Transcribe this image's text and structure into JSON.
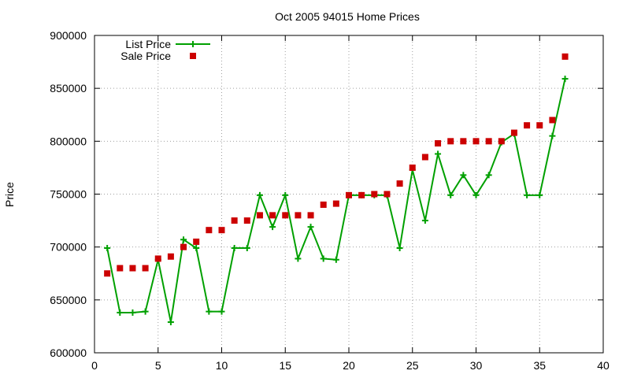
{
  "chart_data": {
    "type": "line",
    "title": "Oct 2005 94015 Home Prices",
    "xlabel": "",
    "ylabel": "Price",
    "xlim": [
      0,
      40
    ],
    "ylim": [
      600000,
      900000
    ],
    "xticks": [
      "0",
      "5",
      "10",
      "15",
      "20",
      "25",
      "30",
      "35",
      "40"
    ],
    "yticks": [
      "600000",
      "650000",
      "700000",
      "750000",
      "800000",
      "850000",
      "900000"
    ],
    "grid": true,
    "legend_position": "top-left",
    "x": [
      1,
      2,
      3,
      4,
      5,
      6,
      7,
      8,
      9,
      10,
      11,
      12,
      13,
      14,
      15,
      16,
      17,
      18,
      19,
      20,
      21,
      22,
      23,
      24,
      25,
      26,
      27,
      28,
      29,
      30,
      31,
      32,
      33,
      34,
      35,
      36,
      37
    ],
    "series": [
      {
        "name": "List Price",
        "style": "line-plus",
        "color": "#00a000",
        "values": [
          699000,
          638000,
          638000,
          639000,
          688000,
          629000,
          707000,
          699000,
          639000,
          639000,
          699000,
          699000,
          749000,
          719000,
          749000,
          689000,
          719000,
          689000,
          688000,
          749000,
          749000,
          749000,
          749000,
          699000,
          773000,
          725000,
          788000,
          749000,
          768000,
          749000,
          768000,
          799000,
          807000,
          749000,
          749000,
          805000,
          859000
        ]
      },
      {
        "name": "Sale Price",
        "style": "square",
        "color": "#cc0000",
        "values": [
          675000,
          680000,
          680000,
          680000,
          689000,
          691000,
          700000,
          705000,
          716000,
          716000,
          725000,
          725000,
          730000,
          730000,
          730000,
          730000,
          730000,
          740000,
          741000,
          749000,
          749000,
          750000,
          750000,
          760000,
          775000,
          785000,
          798000,
          800000,
          800000,
          800000,
          800000,
          800000,
          808000,
          815000,
          815000,
          820000,
          880000
        ]
      }
    ]
  }
}
